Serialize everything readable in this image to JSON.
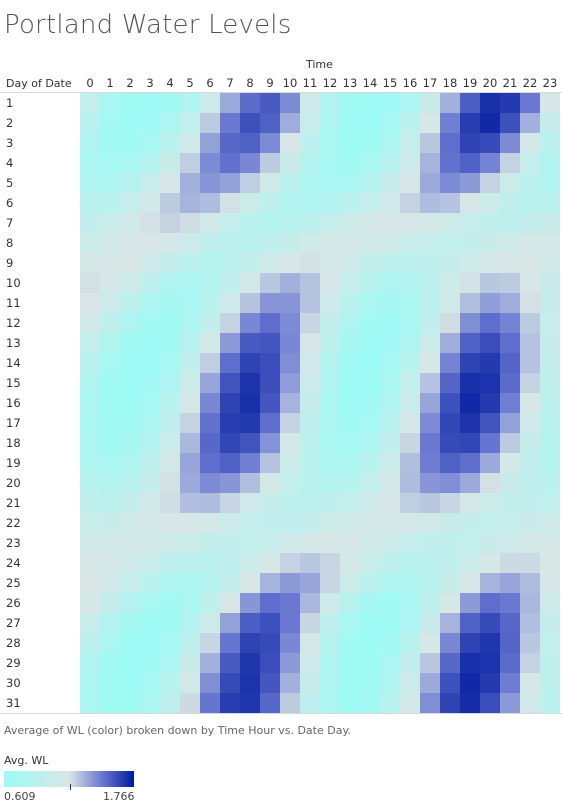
{
  "title": "Portland Water Levels",
  "column_header": "Time",
  "row_header": "Day of Date",
  "caption": "Average of WL (color) broken down by Time Hour vs. Date Day.",
  "legend": {
    "title": "Avg. WL",
    "min_label": "0.609",
    "max_label": "1.766"
  },
  "colors": {
    "low": "#9bfbf5",
    "mid": "#d8e6e6",
    "high": "#001a9e"
  },
  "chart_data": {
    "type": "heatmap",
    "x_categories": [
      "0",
      "1",
      "2",
      "3",
      "4",
      "5",
      "6",
      "7",
      "8",
      "9",
      "10",
      "11",
      "12",
      "13",
      "14",
      "15",
      "16",
      "17",
      "18",
      "19",
      "20",
      "21",
      "22",
      "23"
    ],
    "y_categories": [
      "1",
      "2",
      "3",
      "4",
      "5",
      "6",
      "7",
      "8",
      "9",
      "10",
      "11",
      "12",
      "13",
      "14",
      "15",
      "16",
      "17",
      "18",
      "19",
      "20",
      "21",
      "22",
      "23",
      "24",
      "25",
      "26",
      "27",
      "28",
      "29",
      "30",
      "31"
    ],
    "value_range": [
      0.609,
      1.766
    ],
    "values": [
      [
        0.98,
        0.73,
        0.65,
        0.64,
        0.67,
        0.8,
        1.07,
        1.35,
        1.52,
        1.57,
        1.43,
        1.1,
        0.82,
        0.67,
        0.63,
        0.66,
        0.79,
        1.04,
        1.33,
        1.56,
        1.7,
        1.67,
        1.48,
        1.16
      ],
      [
        0.88,
        0.68,
        0.62,
        0.66,
        0.77,
        0.98,
        1.26,
        1.48,
        1.6,
        1.55,
        1.34,
        1.03,
        0.77,
        0.63,
        0.62,
        0.7,
        0.9,
        1.18,
        1.46,
        1.66,
        1.72,
        1.6,
        1.33,
        1.01
      ],
      [
        0.8,
        0.66,
        0.65,
        0.73,
        0.89,
        1.11,
        1.37,
        1.53,
        1.55,
        1.43,
        1.19,
        0.93,
        0.73,
        0.63,
        0.65,
        0.77,
        1.0,
        1.27,
        1.51,
        1.64,
        1.62,
        1.43,
        1.15,
        0.89
      ],
      [
        0.76,
        0.7,
        0.74,
        0.85,
        1.04,
        1.25,
        1.43,
        1.5,
        1.44,
        1.26,
        1.04,
        0.85,
        0.72,
        0.68,
        0.73,
        0.87,
        1.08,
        1.32,
        1.5,
        1.55,
        1.45,
        1.24,
        1.0,
        0.83
      ],
      [
        0.8,
        0.78,
        0.86,
        1.0,
        1.18,
        1.33,
        1.4,
        1.37,
        1.25,
        1.08,
        0.91,
        0.79,
        0.74,
        0.76,
        0.85,
        1.01,
        1.19,
        1.35,
        1.43,
        1.39,
        1.24,
        1.05,
        0.9,
        0.82
      ],
      [
        0.88,
        0.9,
        1.0,
        1.13,
        1.26,
        1.32,
        1.3,
        1.2,
        1.06,
        0.93,
        0.83,
        0.8,
        0.83,
        0.9,
        1.0,
        1.12,
        1.24,
        1.3,
        1.28,
        1.19,
        1.06,
        0.95,
        0.89,
        0.9
      ],
      [
        0.97,
        1.03,
        1.12,
        1.2,
        1.24,
        1.21,
        1.12,
        1.0,
        0.9,
        0.86,
        0.87,
        0.92,
        1.0,
        1.08,
        1.14,
        1.18,
        1.19,
        1.15,
        1.08,
        1.0,
        0.95,
        0.95,
        0.99,
        1.04
      ],
      [
        1.06,
        1.13,
        1.18,
        1.19,
        1.14,
        1.05,
        0.96,
        0.9,
        0.89,
        0.94,
        1.02,
        1.09,
        1.13,
        1.14,
        1.12,
        1.08,
        1.03,
        1.0,
        0.98,
        0.99,
        1.04,
        1.1,
        1.14,
        1.14
      ],
      [
        1.14,
        1.19,
        1.17,
        1.1,
        0.99,
        0.9,
        0.86,
        0.9,
        0.99,
        1.1,
        1.18,
        1.2,
        1.16,
        1.08,
        0.99,
        0.93,
        0.91,
        0.94,
        1.01,
        1.09,
        1.16,
        1.19,
        1.17,
        1.1
      ],
      [
        1.2,
        1.16,
        1.06,
        0.93,
        0.82,
        0.78,
        0.83,
        0.96,
        1.13,
        1.27,
        1.33,
        1.28,
        1.16,
        1.0,
        0.87,
        0.8,
        0.82,
        0.91,
        1.06,
        1.2,
        1.27,
        1.26,
        1.17,
        1.04
      ],
      [
        1.19,
        1.07,
        0.91,
        0.78,
        0.71,
        0.74,
        0.88,
        1.08,
        1.28,
        1.4,
        1.4,
        1.28,
        1.09,
        0.9,
        0.76,
        0.71,
        0.76,
        0.91,
        1.11,
        1.29,
        1.38,
        1.34,
        1.2,
        1.02
      ],
      [
        1.1,
        0.94,
        0.78,
        0.68,
        0.67,
        0.78,
        0.99,
        1.24,
        1.44,
        1.51,
        1.43,
        1.23,
        0.99,
        0.79,
        0.67,
        0.66,
        0.75,
        0.96,
        1.21,
        1.42,
        1.51,
        1.45,
        1.26,
        1.03
      ],
      [
        0.98,
        0.81,
        0.68,
        0.63,
        0.68,
        0.86,
        1.13,
        1.39,
        1.57,
        1.58,
        1.44,
        1.18,
        0.91,
        0.71,
        0.63,
        0.66,
        0.81,
        1.06,
        1.34,
        1.55,
        1.61,
        1.51,
        1.28,
        1.01
      ],
      [
        0.88,
        0.72,
        0.63,
        0.63,
        0.73,
        0.96,
        1.25,
        1.51,
        1.64,
        1.61,
        1.42,
        1.12,
        0.84,
        0.66,
        0.62,
        0.7,
        0.89,
        1.17,
        1.45,
        1.64,
        1.67,
        1.54,
        1.28,
        0.99
      ],
      [
        0.81,
        0.67,
        0.62,
        0.66,
        0.8,
        1.06,
        1.36,
        1.59,
        1.69,
        1.61,
        1.38,
        1.06,
        0.79,
        0.64,
        0.63,
        0.75,
        0.98,
        1.28,
        1.54,
        1.7,
        1.69,
        1.52,
        1.24,
        0.95
      ],
      [
        0.76,
        0.65,
        0.63,
        0.7,
        0.88,
        1.15,
        1.44,
        1.64,
        1.7,
        1.58,
        1.32,
        1.01,
        0.76,
        0.64,
        0.66,
        0.81,
        1.06,
        1.36,
        1.6,
        1.72,
        1.67,
        1.46,
        1.17,
        0.91
      ],
      [
        0.74,
        0.65,
        0.66,
        0.76,
        0.96,
        1.24,
        1.5,
        1.66,
        1.67,
        1.51,
        1.24,
        0.95,
        0.74,
        0.65,
        0.7,
        0.88,
        1.15,
        1.43,
        1.63,
        1.69,
        1.59,
        1.37,
        1.09,
        0.87
      ],
      [
        0.76,
        0.68,
        0.71,
        0.84,
        1.05,
        1.31,
        1.53,
        1.63,
        1.59,
        1.41,
        1.15,
        0.91,
        0.75,
        0.7,
        0.77,
        0.97,
        1.23,
        1.48,
        1.62,
        1.63,
        1.49,
        1.26,
        1.02,
        0.85
      ],
      [
        0.8,
        0.74,
        0.79,
        0.93,
        1.13,
        1.36,
        1.51,
        1.55,
        1.46,
        1.28,
        1.06,
        0.88,
        0.78,
        0.77,
        0.87,
        1.06,
        1.29,
        1.47,
        1.55,
        1.51,
        1.35,
        1.14,
        0.96,
        0.86
      ],
      [
        0.87,
        0.83,
        0.89,
        1.02,
        1.2,
        1.35,
        1.43,
        1.4,
        1.29,
        1.13,
        0.98,
        0.88,
        0.84,
        0.87,
        0.98,
        1.14,
        1.3,
        1.4,
        1.42,
        1.35,
        1.2,
        1.04,
        0.94,
        0.9
      ],
      [
        0.95,
        0.93,
        0.99,
        1.1,
        1.21,
        1.29,
        1.3,
        1.23,
        1.12,
        1.01,
        0.93,
        0.91,
        0.94,
        1.0,
        1.09,
        1.18,
        1.25,
        1.27,
        1.23,
        1.15,
        1.06,
        0.99,
        0.97,
        0.98
      ],
      [
        1.03,
        1.04,
        1.08,
        1.14,
        1.18,
        1.18,
        1.14,
        1.07,
        1.0,
        0.97,
        0.97,
        1.01,
        1.06,
        1.11,
        1.15,
        1.16,
        1.14,
        1.1,
        1.04,
        0.99,
        0.98,
        1.0,
        1.04,
        1.08
      ],
      [
        1.1,
        1.12,
        1.13,
        1.12,
        1.08,
        1.03,
        0.99,
        0.97,
        0.98,
        1.03,
        1.09,
        1.14,
        1.17,
        1.16,
        1.12,
        1.06,
        1.0,
        0.96,
        0.95,
        0.98,
        1.04,
        1.1,
        1.14,
        1.14
      ],
      [
        1.16,
        1.15,
        1.1,
        1.03,
        0.95,
        0.9,
        0.9,
        0.95,
        1.05,
        1.16,
        1.24,
        1.27,
        1.23,
        1.14,
        1.03,
        0.94,
        0.89,
        0.9,
        0.96,
        1.06,
        1.16,
        1.22,
        1.22,
        1.17
      ],
      [
        1.19,
        1.11,
        1.0,
        0.88,
        0.8,
        0.78,
        0.85,
        0.99,
        1.17,
        1.32,
        1.39,
        1.36,
        1.23,
        1.06,
        0.9,
        0.81,
        0.8,
        0.87,
        1.02,
        1.19,
        1.32,
        1.36,
        1.3,
        1.16
      ],
      [
        1.14,
        0.99,
        0.84,
        0.73,
        0.69,
        0.76,
        0.95,
        1.19,
        1.4,
        1.51,
        1.48,
        1.31,
        1.08,
        0.86,
        0.71,
        0.67,
        0.74,
        0.93,
        1.17,
        1.39,
        1.51,
        1.48,
        1.31,
        1.08
      ],
      [
        1.03,
        0.85,
        0.71,
        0.64,
        0.67,
        0.84,
        1.1,
        1.37,
        1.56,
        1.6,
        1.48,
        1.23,
        0.95,
        0.74,
        0.63,
        0.65,
        0.79,
        1.04,
        1.32,
        1.55,
        1.62,
        1.53,
        1.29,
        1.01
      ],
      [
        0.91,
        0.74,
        0.64,
        0.63,
        0.72,
        0.94,
        1.23,
        1.49,
        1.64,
        1.62,
        1.44,
        1.15,
        0.86,
        0.67,
        0.62,
        0.69,
        0.88,
        1.16,
        1.44,
        1.64,
        1.68,
        1.54,
        1.27,
        0.98
      ],
      [
        0.82,
        0.68,
        0.62,
        0.65,
        0.79,
        1.04,
        1.33,
        1.57,
        1.68,
        1.61,
        1.39,
        1.08,
        0.8,
        0.65,
        0.63,
        0.74,
        0.97,
        1.27,
        1.53,
        1.7,
        1.69,
        1.52,
        1.24,
        0.95
      ],
      [
        0.77,
        0.65,
        0.63,
        0.7,
        0.87,
        1.13,
        1.42,
        1.62,
        1.69,
        1.58,
        1.33,
        1.02,
        0.77,
        0.64,
        0.65,
        0.8,
        1.05,
        1.35,
        1.6,
        1.72,
        1.67,
        1.47,
        1.18,
        0.92
      ],
      [
        0.75,
        0.65,
        0.65,
        0.75,
        0.95,
        1.22,
        1.49,
        1.66,
        1.68,
        1.53,
        1.26,
        0.96,
        0.75,
        0.64,
        0.69,
        0.87,
        1.13,
        1.42,
        1.64,
        1.71,
        1.61,
        1.39,
        1.11,
        0.88
      ]
    ]
  }
}
